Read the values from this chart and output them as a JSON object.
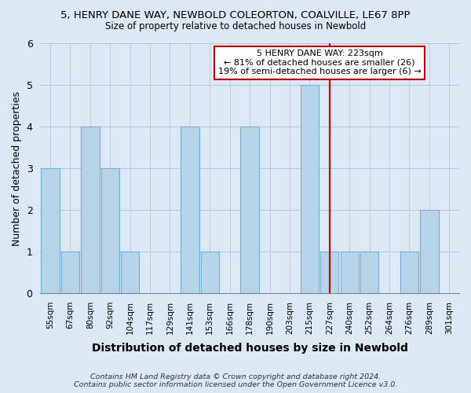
{
  "title": "5, HENRY DANE WAY, NEWBOLD COLEORTON, COALVILLE, LE67 8PP",
  "subtitle": "Size of property relative to detached houses in Newbold",
  "xlabel": "Distribution of detached houses by size in Newbold",
  "ylabel": "Number of detached properties",
  "bar_labels": [
    "55sqm",
    "67sqm",
    "80sqm",
    "92sqm",
    "104sqm",
    "117sqm",
    "129sqm",
    "141sqm",
    "153sqm",
    "166sqm",
    "178sqm",
    "190sqm",
    "203sqm",
    "215sqm",
    "227sqm",
    "240sqm",
    "252sqm",
    "264sqm",
    "276sqm",
    "289sqm",
    "301sqm"
  ],
  "bar_values": [
    3,
    1,
    4,
    3,
    1,
    0,
    0,
    4,
    1,
    0,
    4,
    0,
    0,
    5,
    1,
    1,
    1,
    0,
    1,
    2,
    0
  ],
  "bar_color": "#b8d4e8",
  "bar_edge_color": "#7aafd4",
  "vline_index": 14,
  "vline_color": "#cc0000",
  "annotation_text": "5 HENRY DANE WAY: 223sqm\n← 81% of detached houses are smaller (26)\n19% of semi-detached houses are larger (6) →",
  "annotation_box_color": "#ffffff",
  "annotation_box_edge": "#cc0000",
  "ylim": [
    0,
    6
  ],
  "yticks": [
    0,
    1,
    2,
    3,
    4,
    5,
    6
  ],
  "footer": "Contains HM Land Registry data © Crown copyright and database right 2024.\nContains public sector information licensed under the Open Government Licence v3.0.",
  "background_color": "#dde8f5",
  "plot_background_color": "#dde8f5"
}
